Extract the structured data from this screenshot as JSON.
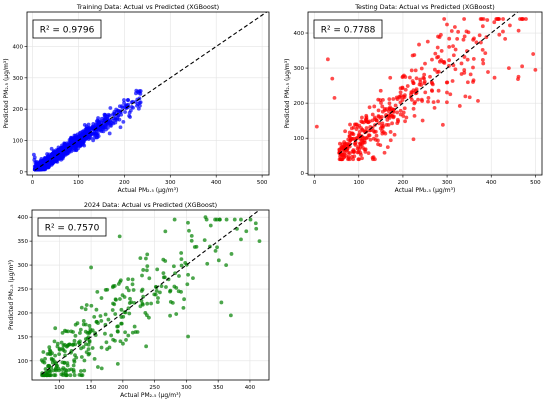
{
  "chart_data": [
    {
      "type": "scatter",
      "title": "Training Data: Actual vs Predicted (XGBoost)",
      "xlabel": "Actual PM₂.₅ (μg/m³)",
      "ylabel": "Predicted PM₂.₅ (μg/m³)",
      "annotation": "R² = 0.9796",
      "r2": 0.9796,
      "color": "#0000ff",
      "xlim": [
        -12,
        515
      ],
      "ylim": [
        -10,
        510
      ],
      "xticks": [
        0,
        100,
        200,
        300,
        400,
        500
      ],
      "yticks": [
        0,
        100,
        200,
        300,
        400
      ],
      "grid": true,
      "reference_line": "y = x (dashed black)",
      "gen": {
        "n": 1600,
        "xmin": 5,
        "xmax": 500,
        "shape": 55,
        "noise": 0.06,
        "noiseAbs": 6,
        "seed": 11,
        "ymin": 8,
        "ymax": 490
      },
      "extra_points": [
        [
          3,
          55
        ],
        [
          4,
          38
        ],
        [
          6,
          30
        ],
        [
          5,
          46
        ]
      ]
    },
    {
      "type": "scatter",
      "title": "Testing Data: Actual vs Predicted (XGBoost)",
      "xlabel": "Actual PM₂.₅ (μg/m³)",
      "ylabel": "Predicted PM₂.₅ (μg/m³)",
      "annotation": "R² = 0.7788",
      "r2": 0.7788,
      "color": "#ff0000",
      "xlim": [
        -15,
        515
      ],
      "ylim": [
        -5,
        460
      ],
      "xticks": [
        0,
        100,
        200,
        300,
        400,
        500
      ],
      "yticks": [
        0,
        100,
        200,
        300,
        400
      ],
      "grid": true,
      "reference_line": "y = x (dashed black)",
      "gen": {
        "n": 420,
        "xmin": 55,
        "xmax": 480,
        "shape": 160,
        "noise": 0.16,
        "noiseAbs": 14,
        "seed": 23,
        "ymin": 40,
        "ymax": 440
      },
      "extra_points": [
        [
          5,
          133
        ],
        [
          30,
          325
        ],
        [
          40,
          270
        ],
        [
          45,
          215
        ],
        [
          440,
          300
        ],
        [
          495,
          340
        ],
        [
          500,
          295
        ],
        [
          470,
          305
        ]
      ]
    },
    {
      "type": "scatter",
      "title": "2024 Data: Actual vs Predicted (XGBoost)",
      "xlabel": "Actual PM₂.₅ (μg/m³)",
      "ylabel": "Predicted PM₂.₅ (μg/m³)",
      "annotation": "R² = 0.7570",
      "r2": 0.757,
      "color": "#008000",
      "xlim": [
        57,
        430
      ],
      "ylim": [
        60,
        415
      ],
      "xticks": [
        100,
        150,
        200,
        250,
        300,
        350,
        400
      ],
      "yticks": [
        100,
        150,
        200,
        250,
        300,
        350,
        400
      ],
      "grid": true,
      "reference_line": "y = x (dashed black)",
      "gen": {
        "n": 330,
        "xmin": 72,
        "xmax": 410,
        "shape": 120,
        "noise": 0.16,
        "noiseAbs": 14,
        "seed": 37,
        "ymin": 70,
        "ymax": 395
      },
      "extra_points": [
        [
          195,
          360
        ],
        [
          330,
          400
        ],
        [
          415,
          350
        ],
        [
          150,
          295
        ],
        [
          370,
          195
        ]
      ]
    }
  ]
}
